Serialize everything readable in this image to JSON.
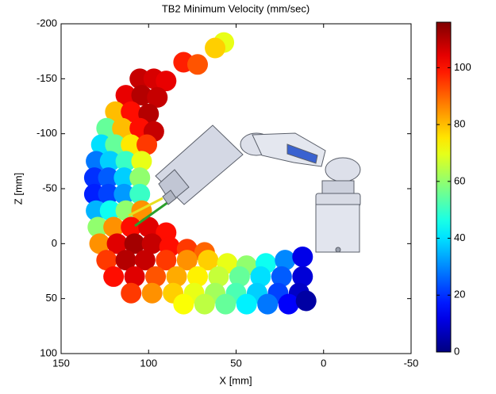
{
  "chart_data": {
    "type": "scatter",
    "title": "TB2 Minimum Velocity (mm/sec)",
    "x_label": "X [mm]",
    "y_label": "Z [mm]",
    "xlim": [
      150,
      -50
    ],
    "ylim": [
      100,
      -200
    ],
    "xticks": [
      150,
      100,
      50,
      0,
      -50
    ],
    "yticks": [
      -200,
      -150,
      -100,
      -50,
      0,
      50,
      100
    ],
    "colormap": "jet",
    "clim": [
      0,
      116
    ],
    "cticks": [
      0,
      20,
      40,
      60,
      80,
      100
    ],
    "x": [
      57,
      62,
      80,
      72,
      105,
      97,
      90,
      113,
      104,
      95,
      119,
      110,
      100,
      124,
      115,
      105,
      97,
      127,
      119,
      110,
      101,
      130,
      122,
      113,
      104,
      131,
      123,
      114,
      105,
      131,
      123,
      114,
      105,
      130,
      122,
      113,
      104,
      129,
      120,
      110,
      100,
      90,
      128,
      118,
      108,
      98,
      88,
      78,
      68,
      124,
      113,
      102,
      90,
      78,
      66,
      55,
      44,
      33,
      22,
      12,
      120,
      108,
      96,
      84,
      72,
      60,
      48,
      36,
      24,
      12,
      110,
      98,
      86,
      74,
      62,
      50,
      38,
      26,
      14,
      80,
      68,
      56,
      44,
      32,
      20,
      10
    ],
    "values": [
      -183,
      -178,
      -165,
      -163,
      -150,
      -150,
      -148,
      -135,
      -135,
      -133,
      -120,
      -120,
      -118,
      -105,
      -105,
      -105,
      -102,
      -90,
      -90,
      -90,
      -90,
      -75,
      -75,
      -75,
      -75,
      -60,
      -60,
      -60,
      -60,
      -45,
      -45,
      -45,
      -45,
      -30,
      -30,
      -30,
      -30,
      -15,
      -15,
      -15,
      -15,
      -10,
      0,
      0,
      0,
      0,
      3,
      5,
      8,
      15,
      15,
      15,
      15,
      15,
      15,
      18,
      20,
      18,
      15,
      12,
      30,
      30,
      30,
      30,
      30,
      30,
      30,
      30,
      30,
      30,
      45,
      45,
      45,
      45,
      45,
      45,
      45,
      45,
      45,
      55,
      55,
      55,
      55,
      55,
      55,
      52
    ],
    "color_values": [
      70,
      78,
      98,
      92,
      108,
      106,
      104,
      104,
      110,
      108,
      80,
      100,
      110,
      55,
      80,
      100,
      108,
      40,
      55,
      75,
      95,
      28,
      38,
      50,
      70,
      20,
      25,
      38,
      60,
      18,
      22,
      32,
      50,
      35,
      45,
      60,
      85,
      60,
      85,
      100,
      105,
      100,
      85,
      105,
      112,
      108,
      100,
      95,
      90,
      95,
      110,
      108,
      95,
      85,
      78,
      70,
      60,
      45,
      30,
      12,
      100,
      105,
      92,
      82,
      74,
      66,
      55,
      40,
      25,
      10,
      95,
      85,
      78,
      70,
      62,
      52,
      38,
      22,
      8,
      72,
      65,
      55,
      42,
      28,
      14,
      4
    ]
  }
}
